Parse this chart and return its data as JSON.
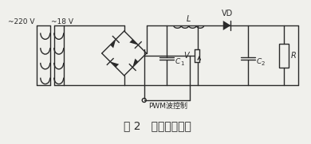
{
  "title": "图 2   升压斩波电路",
  "label_220": "~220 V",
  "label_18": "~18 V",
  "label_L": "L",
  "label_VD": "VD",
  "label_V": "V",
  "label_C1": "C",
  "label_C1_sub": "1",
  "label_C2": "C",
  "label_C2_sub": "2",
  "label_R": "R",
  "label_PWM": "PWM波控制",
  "bg_color": "#f0f0ec",
  "line_color": "#2a2a2a",
  "font_size": 7.0,
  "title_font_size": 10
}
